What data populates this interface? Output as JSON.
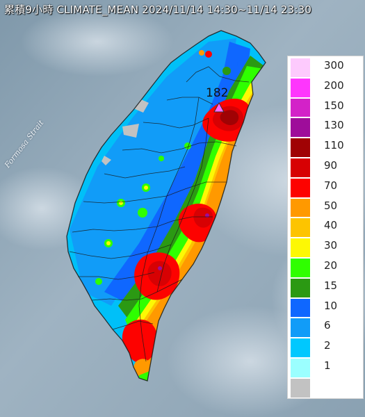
{
  "title": "累積9小時 CLIMATE_MEAN 2024/11/14 14:30~11/14 23:30",
  "sea_label": "Formosa Strait",
  "max_marker": {
    "value": "182",
    "color": "#ff66ff"
  },
  "legend": [
    {
      "label": "300",
      "color": "#fdcafd"
    },
    {
      "label": "200",
      "color": "#fe36fd"
    },
    {
      "label": "150",
      "color": "#d322c8"
    },
    {
      "label": "130",
      "color": "#9e0d9a"
    },
    {
      "label": "110",
      "color": "#a00204"
    },
    {
      "label": "90",
      "color": "#d70103"
    },
    {
      "label": "70",
      "color": "#fd0200"
    },
    {
      "label": "50",
      "color": "#ff9900"
    },
    {
      "label": "40",
      "color": "#fdc400"
    },
    {
      "label": "30",
      "color": "#fdf804"
    },
    {
      "label": "20",
      "color": "#2fff00"
    },
    {
      "label": "15",
      "color": "#2b9913"
    },
    {
      "label": "10",
      "color": "#0f67ff"
    },
    {
      "label": "6",
      "color": "#119cf8"
    },
    {
      "label": "2",
      "color": "#00c8fe"
    },
    {
      "label": "1",
      "color": "#9bffff"
    },
    {
      "label": "",
      "color": "#c2c2c2"
    }
  ]
}
